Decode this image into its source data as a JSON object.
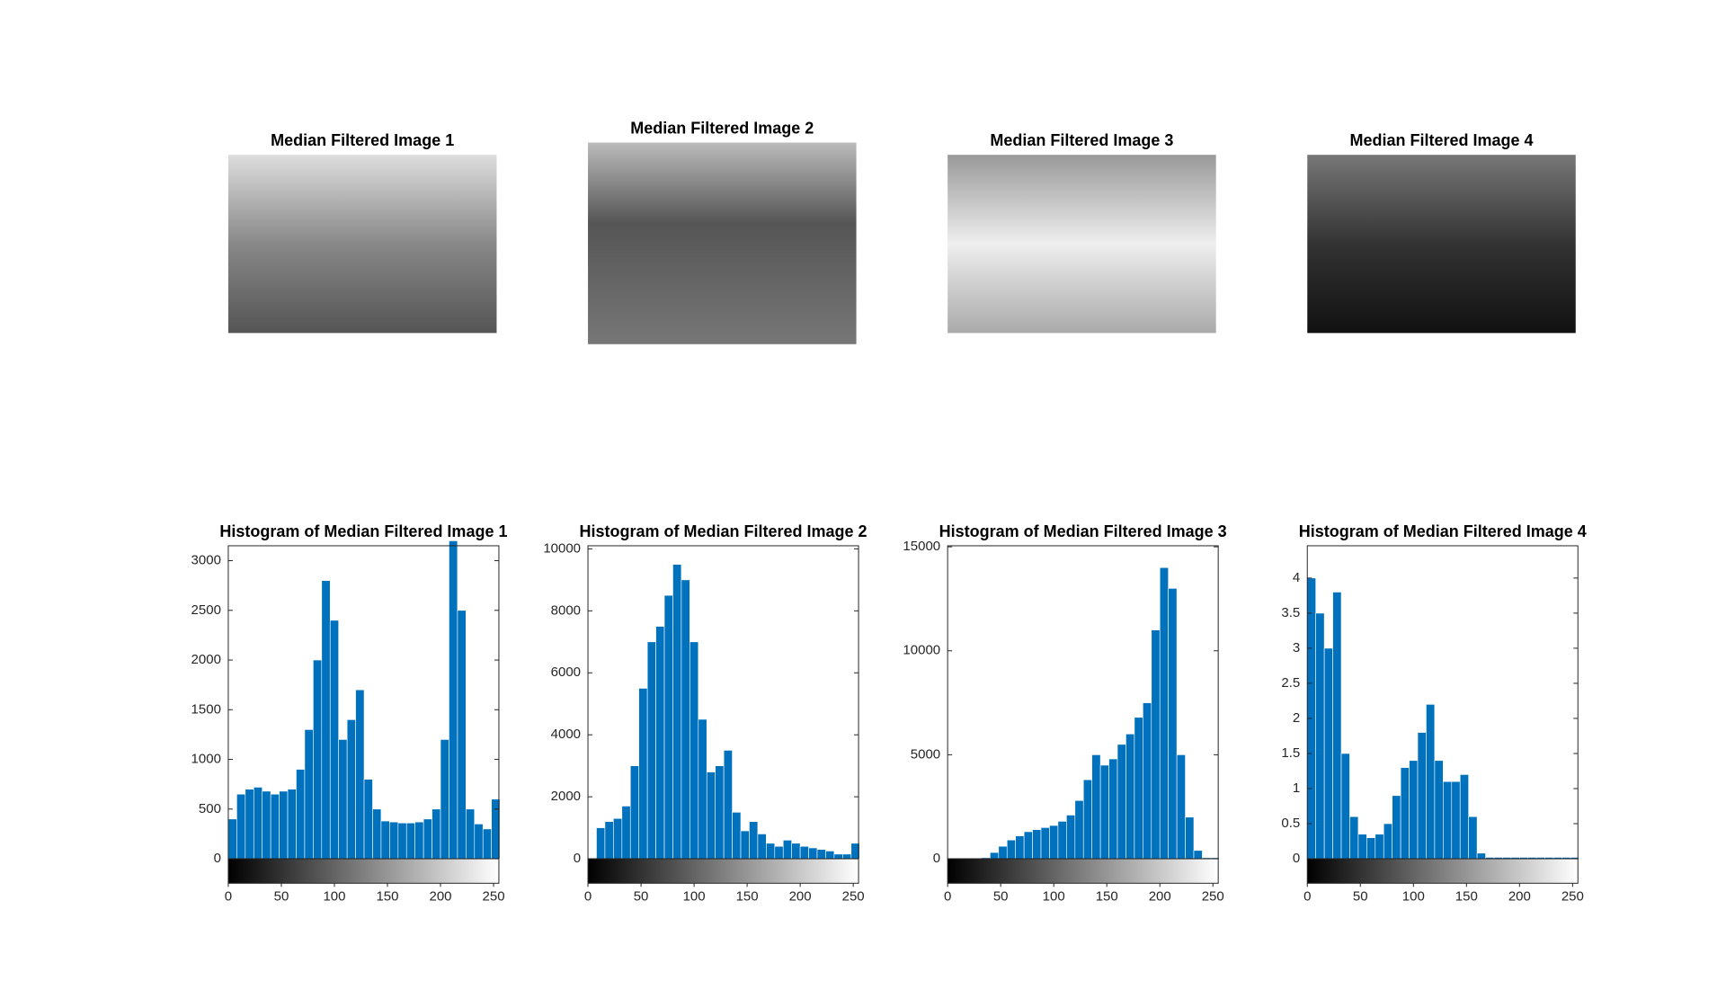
{
  "chart_data": [
    {
      "type": "image",
      "title": "Median Filtered Image 1"
    },
    {
      "type": "image",
      "title": "Median Filtered Image 2"
    },
    {
      "type": "image",
      "title": "Median Filtered Image 3"
    },
    {
      "type": "image",
      "title": "Median Filtered Image 4"
    },
    {
      "type": "histogram",
      "title": "Histogram of Median Filtered Image 1",
      "color": "#0072bd",
      "bins": [
        0,
        8,
        16,
        24,
        32,
        40,
        48,
        56,
        64,
        72,
        80,
        88,
        96,
        104,
        112,
        120,
        128,
        136,
        144,
        152,
        160,
        168,
        176,
        184,
        192,
        200,
        208,
        216,
        224,
        232,
        240,
        248,
        256
      ],
      "values": [
        400,
        650,
        700,
        720,
        680,
        650,
        680,
        700,
        900,
        1300,
        2000,
        2800,
        2400,
        1200,
        1400,
        1700,
        800,
        500,
        380,
        370,
        360,
        360,
        370,
        400,
        500,
        1200,
        3200,
        2500,
        500,
        350,
        300,
        600
      ],
      "xlim": [
        0,
        255
      ],
      "xticks": [
        0,
        50,
        100,
        150,
        200,
        250
      ],
      "ylim": [
        0,
        3150
      ],
      "yticks": [
        0,
        500,
        1000,
        1500,
        2000,
        2500,
        3000
      ]
    },
    {
      "type": "histogram",
      "title": "Histogram of Median Filtered Image 2",
      "color": "#0072bd",
      "bins": [
        0,
        8,
        16,
        24,
        32,
        40,
        48,
        56,
        64,
        72,
        80,
        88,
        96,
        104,
        112,
        120,
        128,
        136,
        144,
        152,
        160,
        168,
        176,
        184,
        192,
        200,
        208,
        216,
        224,
        232,
        240,
        248,
        256
      ],
      "values": [
        0,
        1000,
        1200,
        1300,
        1700,
        3000,
        5500,
        7000,
        7500,
        8500,
        9500,
        9000,
        7000,
        4500,
        2800,
        3000,
        3500,
        1500,
        900,
        1200,
        800,
        500,
        400,
        600,
        500,
        400,
        350,
        300,
        250,
        150,
        150,
        500
      ],
      "xlim": [
        0,
        255
      ],
      "xticks": [
        0,
        50,
        100,
        150,
        200,
        250
      ],
      "ylim": [
        0,
        10100
      ],
      "yticks": [
        0,
        2000,
        4000,
        6000,
        8000,
        10000
      ]
    },
    {
      "type": "histogram",
      "title": "Histogram of Median Filtered Image 3",
      "color": "#0072bd",
      "bins": [
        0,
        8,
        16,
        24,
        32,
        40,
        48,
        56,
        64,
        72,
        80,
        88,
        96,
        104,
        112,
        120,
        128,
        136,
        144,
        152,
        160,
        168,
        176,
        184,
        192,
        200,
        208,
        216,
        224,
        232,
        240,
        248,
        256
      ],
      "values": [
        0,
        0,
        0,
        0,
        50,
        300,
        600,
        900,
        1100,
        1300,
        1400,
        1500,
        1600,
        1800,
        2100,
        2800,
        3800,
        5000,
        4500,
        4800,
        5500,
        6000,
        6800,
        7500,
        11000,
        14000,
        13000,
        5000,
        2000,
        400,
        50,
        50
      ],
      "xlim": [
        0,
        255
      ],
      "xticks": [
        0,
        50,
        100,
        150,
        200,
        250
      ],
      "ylim": [
        0,
        15050
      ],
      "yticks": [
        0,
        5000,
        10000,
        15000
      ]
    },
    {
      "type": "histogram",
      "title": "Histogram of Median Filtered Image 4",
      "color": "#0072bd",
      "bins": [
        0,
        8,
        16,
        24,
        32,
        40,
        48,
        56,
        64,
        72,
        80,
        88,
        96,
        104,
        112,
        120,
        128,
        136,
        144,
        152,
        160,
        168,
        176,
        184,
        192,
        200,
        208,
        216,
        224,
        232,
        240,
        248,
        256
      ],
      "values": [
        4.0,
        3.5,
        3.0,
        3.8,
        1.5,
        0.6,
        0.35,
        0.3,
        0.35,
        0.5,
        0.9,
        1.3,
        1.4,
        1.8,
        2.2,
        1.4,
        1.1,
        1.1,
        1.2,
        0.6,
        0.08,
        0.02,
        0.02,
        0.02,
        0.02,
        0.02,
        0.02,
        0.02,
        0.02,
        0.02,
        0.02,
        0.02
      ],
      "xlim": [
        0,
        255
      ],
      "xticks": [
        0,
        50,
        100,
        150,
        200,
        250
      ],
      "ylim": [
        0,
        4.46
      ],
      "yticks": [
        0,
        0.5,
        1,
        1.5,
        2,
        2.5,
        3,
        3.5,
        4
      ]
    }
  ]
}
